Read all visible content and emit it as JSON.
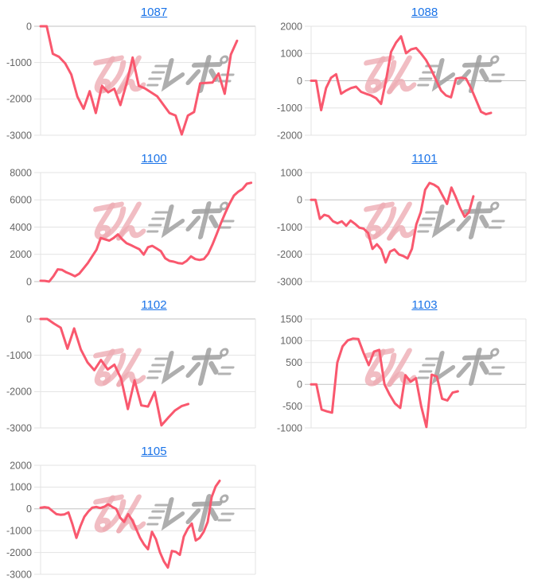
{
  "page": {
    "background": "#ffffff"
  },
  "style": {
    "line_color": "#f9586e",
    "grid_color": "#e3e3e3",
    "zero_line_color": "#c2c2c2",
    "plot_border_color": "#e3e3e3",
    "tick_label_color": "#666666",
    "title_link_color": "#1a73e8"
  },
  "watermark": {
    "text": "みんレポ",
    "pink_text": "みん",
    "gray_text": "レポ",
    "pink_color": "#eeacb4",
    "gray_color": "#a0a0a0"
  },
  "chart_data": [
    {
      "type": "line",
      "title": "1087",
      "yticks": [
        0,
        -1000,
        -2000,
        -3000
      ],
      "ylim": [
        -3000,
        0
      ],
      "x_slots": 36,
      "grid": true,
      "legend": "none",
      "values": [
        0,
        0,
        -760,
        -840,
        -1020,
        -1330,
        -1940,
        -2270,
        -1790,
        -2390,
        -1640,
        -1820,
        -1720,
        -2170,
        -1580,
        -860,
        -1640,
        -1710,
        -1820,
        -1930,
        -2160,
        -2390,
        -2460,
        -2980,
        -2460,
        -2360,
        -1570,
        -1560,
        -1550,
        -1300,
        -1860,
        -780,
        -400
      ]
    },
    {
      "type": "line",
      "title": "1088",
      "yticks": [
        2000,
        1000,
        0,
        -1000,
        -2000
      ],
      "ylim": [
        -2000,
        2000
      ],
      "x_slots": 44,
      "grid": true,
      "legend": "none",
      "values": [
        0,
        0,
        -1080,
        -270,
        110,
        240,
        -480,
        -360,
        -270,
        -220,
        -410,
        -480,
        -540,
        -640,
        -850,
        30,
        1060,
        1400,
        1630,
        1010,
        1150,
        1200,
        1000,
        760,
        420,
        30,
        -360,
        -540,
        -610,
        80,
        110,
        80,
        -270,
        -700,
        -1140,
        -1230,
        -1180
      ]
    },
    {
      "type": "line",
      "title": "1100",
      "yticks": [
        8000,
        6000,
        4000,
        2000,
        0
      ],
      "ylim": [
        0,
        8000
      ],
      "x_slots": 51,
      "grid": true,
      "legend": "none",
      "values": [
        60,
        50,
        0,
        400,
        900,
        860,
        680,
        550,
        390,
        580,
        970,
        1360,
        1850,
        2330,
        3200,
        3100,
        3010,
        3200,
        3460,
        3100,
        2820,
        2680,
        2520,
        2370,
        1980,
        2520,
        2620,
        2430,
        2230,
        1710,
        1520,
        1460,
        1360,
        1320,
        1520,
        1850,
        1650,
        1590,
        1650,
        2040,
        2720,
        3500,
        4310,
        5050,
        5730,
        6310,
        6600,
        6800,
        7180,
        7250
      ]
    },
    {
      "type": "line",
      "title": "1101",
      "yticks": [
        1000,
        0,
        -1000,
        -2000,
        -3000
      ],
      "ylim": [
        -3000,
        1000
      ],
      "x_slots": 50,
      "grid": true,
      "legend": "none",
      "values": [
        0,
        0,
        -700,
        -550,
        -600,
        -790,
        -860,
        -790,
        -950,
        -760,
        -880,
        -1020,
        -1060,
        -1220,
        -1800,
        -1630,
        -1820,
        -2300,
        -1900,
        -1820,
        -2000,
        -2060,
        -2150,
        -1800,
        -900,
        -450,
        370,
        620,
        560,
        450,
        150,
        -150,
        450,
        100,
        -300,
        -620,
        -450,
        130
      ]
    },
    {
      "type": "line",
      "title": "1102",
      "yticks": [
        0,
        -1000,
        -2000,
        -3000
      ],
      "ylim": [
        -3000,
        0
      ],
      "x_slots": 33,
      "grid": true,
      "legend": "none",
      "values": [
        0,
        0,
        -130,
        -240,
        -820,
        -260,
        -840,
        -1200,
        -1410,
        -1130,
        -1390,
        -1260,
        -1650,
        -2480,
        -1690,
        -2380,
        -2410,
        -2010,
        -2930,
        -2720,
        -2520,
        -2400,
        -2340
      ]
    },
    {
      "type": "line",
      "title": "1103",
      "yticks": [
        1500,
        1000,
        500,
        0,
        -500,
        -1000
      ],
      "ylim": [
        -1000,
        1500
      ],
      "x_slots": 42,
      "grid": true,
      "legend": "none",
      "values": [
        0,
        0,
        -580,
        -620,
        -650,
        500,
        870,
        1010,
        1050,
        1040,
        720,
        440,
        750,
        790,
        0,
        -240,
        -440,
        -540,
        210,
        60,
        140,
        -500,
        -980,
        220,
        180,
        -330,
        -370,
        -190,
        -160
      ]
    },
    {
      "type": "line",
      "title": "1105",
      "yticks": [
        2000,
        1000,
        0,
        -1000,
        -2000,
        -3000
      ],
      "ylim": [
        -3000,
        2000
      ],
      "x_slots": 55,
      "grid": true,
      "legend": "none",
      "values": [
        50,
        80,
        50,
        -100,
        -240,
        -270,
        -250,
        -160,
        -700,
        -1330,
        -800,
        -360,
        -120,
        60,
        90,
        40,
        100,
        210,
        90,
        0,
        -400,
        -600,
        -240,
        -510,
        -910,
        -1330,
        -1630,
        -1850,
        -1050,
        -1390,
        -1990,
        -2410,
        -2690,
        -1930,
        -1970,
        -2110,
        -1270,
        -910,
        -670,
        -1450,
        -1330,
        -1050,
        -600,
        540,
        1030,
        1290
      ]
    }
  ]
}
